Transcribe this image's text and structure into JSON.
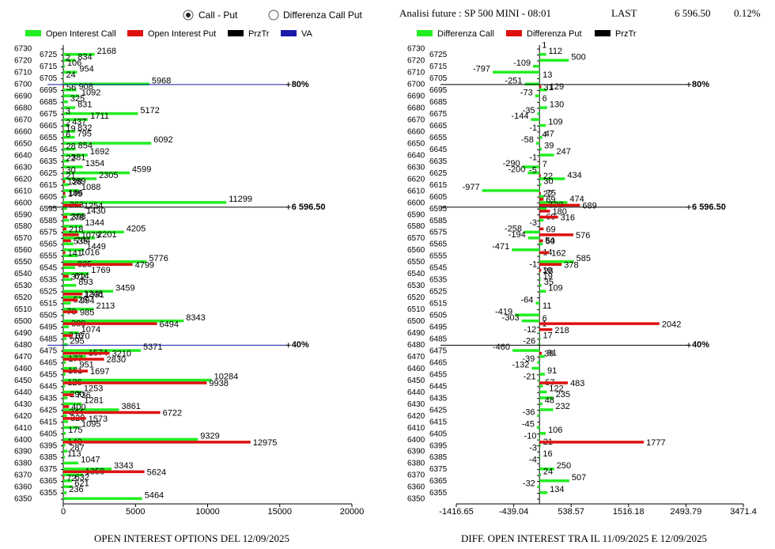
{
  "header": {
    "radio_options": [
      "Call - Put",
      "Differenza Call Put"
    ],
    "future_label": "Analisi future : SP 500 MINI - 08:01",
    "last_label": "LAST",
    "last_value": "6 596.50",
    "change": "0.12%"
  },
  "chart_data": [
    {
      "type": "bar",
      "orientation": "horizontal",
      "title": "OPEN INTEREST OPTIONS DEL 12/09/2025",
      "categories": [
        6730,
        6725,
        6720,
        6715,
        6710,
        6705,
        6700,
        6695,
        6690,
        6685,
        6680,
        6675,
        6670,
        6665,
        6660,
        6655,
        6650,
        6645,
        6640,
        6635,
        6630,
        6625,
        6620,
        6615,
        6610,
        6605,
        6600,
        6595,
        6590,
        6585,
        6580,
        6575,
        6570,
        6565,
        6560,
        6555,
        6550,
        6545,
        6540,
        6535,
        6530,
        6525,
        6520,
        6515,
        6510,
        6505,
        6500,
        6495,
        6490,
        6485,
        6480,
        6475,
        6470,
        6465,
        6460,
        6455,
        6450,
        6445,
        6440,
        6435,
        6430,
        6425,
        6420,
        6415,
        6410,
        6405,
        6400,
        6395,
        6390,
        6385,
        6380,
        6375,
        6370,
        6365,
        6360,
        6355,
        6350
      ],
      "series": [
        {
          "name": "Open Interest Call",
          "color": "#22ee22",
          "values": [
            null,
            2168,
            834,
            106,
            954,
            24,
            5968,
            908,
            1092,
            325,
            831,
            5172,
            1711,
            437,
            832,
            795,
            6092,
            854,
            1692,
            381,
            1354,
            4599,
            2305,
            389,
            1088,
            196,
            11299,
            263,
            1430,
            398,
            1344,
            4205,
            2201,
            704,
            1449,
            1016,
            5776,
            825,
            1769,
            614,
            893,
            3459,
            1248,
            525,
            2113,
            70,
            8343,
            389,
            1074,
            216,
            295,
            5371,
            1574,
            177,
            951,
            161,
            10284,
            126,
            1253,
            290,
            1281,
            3861,
            244,
            328,
            1095,
            175,
            9329,
            140,
            287,
            113,
            1047,
            3343,
            1358,
            632,
            621,
            236,
            5464
          ]
        },
        {
          "name": "Open Interest Put",
          "color": "#dd1111",
          "values": [
            null,
            2,
            null,
            null,
            null,
            null,
            56,
            null,
            null,
            null,
            3,
            null,
            2,
            19,
            6,
            null,
            28,
            null,
            22,
            null,
            30,
            21,
            128,
            null,
            145,
            null,
            1254,
            null,
            278,
            null,
            218,
            1079,
            535,
            null,
            141,
            null,
            4799,
            null,
            372,
            null,
            null,
            1331,
            994,
            null,
            985,
            null,
            6494,
            null,
            670,
            null,
            null,
            3210,
            2830,
            null,
            1697,
            null,
            9938,
            null,
            736,
            null,
            400,
            6722,
            1573,
            null,
            null,
            null,
            12975,
            null,
            null,
            null,
            null,
            5624,
            72,
            null,
            null,
            null,
            null
          ]
        }
      ],
      "ref_lines": [
        {
          "name": "PrzTr",
          "color": "#000000",
          "levels": [
            {
              "value": 6596.5,
              "label": "6 596.50"
            }
          ]
        },
        {
          "name": "VA",
          "color": "#1a1aaa",
          "levels": [
            {
              "value": 6700,
              "label": "80%"
            },
            {
              "value": 6480,
              "label": "40%"
            }
          ]
        }
      ],
      "xlim": [
        0,
        20000
      ],
      "xticks": [
        0,
        5000,
        10000,
        15000,
        20000
      ]
    },
    {
      "type": "bar",
      "orientation": "horizontal",
      "title": "DIFF. OPEN INTEREST TRA IL 11/09/2025 E 12/09/2025",
      "categories": [
        6730,
        6725,
        6720,
        6715,
        6710,
        6705,
        6700,
        6695,
        6690,
        6685,
        6680,
        6675,
        6670,
        6665,
        6660,
        6655,
        6650,
        6645,
        6640,
        6635,
        6630,
        6625,
        6620,
        6615,
        6610,
        6605,
        6600,
        6595,
        6590,
        6585,
        6580,
        6575,
        6570,
        6565,
        6560,
        6555,
        6550,
        6545,
        6540,
        6535,
        6530,
        6525,
        6520,
        6515,
        6510,
        6505,
        6500,
        6495,
        6490,
        6485,
        6480,
        6475,
        6470,
        6465,
        6460,
        6455,
        6450,
        6445,
        6440,
        6435,
        6430,
        6425,
        6420,
        6415,
        6410,
        6405,
        6400,
        6395,
        6390,
        6385,
        6380,
        6375,
        6370,
        6365,
        6360,
        6355,
        6350
      ],
      "series": [
        {
          "name": "Differenza Call",
          "color": "#22ee22",
          "values": [
            1,
            112,
            500,
            -109,
            -797,
            13,
            -251,
            129,
            -73,
            6,
            130,
            -35,
            -144,
            109,
            -1,
            47,
            -58,
            39,
            247,
            -1,
            -290,
            -200,
            434,
            30,
            -977,
            75,
            474,
            120,
            null,
            69,
            -3,
            -258,
            -194,
            54,
            -471,
            14,
            585,
            -1,
            10,
            19,
            35,
            109,
            null,
            -64,
            11,
            -419,
            -303,
            1,
            -12,
            17,
            -26,
            -460,
            91,
            -39,
            -132,
            91,
            -21,
            57,
            122,
            235,
            48,
            232,
            -36,
            null,
            -45,
            106,
            -10,
            21,
            -3,
            16,
            -4,
            250,
            24,
            507,
            -32,
            134,
            null
          ]
        },
        {
          "name": "Differenza Put",
          "color": "#dd1111",
          "values": [
            null,
            null,
            null,
            null,
            null,
            null,
            31,
            null,
            null,
            null,
            null,
            null,
            null,
            null,
            4,
            null,
            null,
            null,
            null,
            7,
            -5,
            22,
            null,
            null,
            22,
            69,
            689,
            180,
            316,
            null,
            69,
            576,
            60,
            null,
            162,
            null,
            378,
            28,
            null,
            null,
            null,
            null,
            null,
            null,
            null,
            6,
            2042,
            218,
            null,
            null,
            null,
            39,
            null,
            null,
            null,
            null,
            483,
            null,
            null,
            null,
            null,
            null,
            null,
            null,
            null,
            null,
            1777,
            null,
            null,
            null,
            null,
            null,
            null,
            null,
            null,
            null,
            null
          ]
        }
      ],
      "ref_lines": [
        {
          "name": "PrzTr",
          "color": "#000000",
          "levels": [
            {
              "value": 6596.5,
              "label": "6 596.50"
            },
            {
              "value": 6700,
              "label": "80%"
            },
            {
              "value": 6480,
              "label": "40%"
            }
          ]
        }
      ],
      "xlim": [
        -1416.65,
        3471.4
      ],
      "xticks": [
        -1416.65,
        -439.04,
        538.57,
        1516.18,
        2493.79,
        3471.4
      ]
    }
  ]
}
